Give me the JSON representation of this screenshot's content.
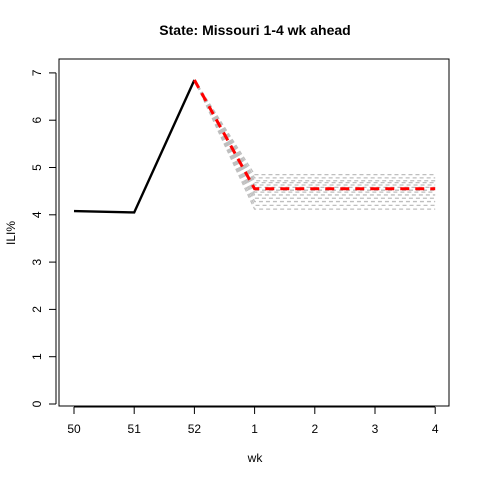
{
  "chart_data": {
    "type": "line",
    "title": "State: Missouri 1-4 wk ahead",
    "xlabel": "wk",
    "ylabel": "ILI%",
    "x_ticks": [
      "50",
      "51",
      "52",
      "1",
      "2",
      "3",
      "4"
    ],
    "ylim": [
      0,
      7
    ],
    "y_ticks": [
      "0",
      "1",
      "2",
      "3",
      "4",
      "5",
      "6",
      "7"
    ],
    "grid": false,
    "series": [
      {
        "role": "observed",
        "color": "#000000",
        "style": "solid",
        "points": [
          [
            "50",
            4.08
          ],
          [
            "51",
            4.05
          ],
          [
            "52",
            6.85
          ]
        ]
      },
      {
        "role": "forecast-median",
        "color": "#ff0000",
        "style": "dashed",
        "points": [
          [
            "52",
            6.85
          ],
          [
            "1",
            4.55
          ],
          [
            "2",
            4.55
          ],
          [
            "3",
            4.55
          ],
          [
            "4",
            4.55
          ]
        ]
      },
      {
        "role": "forecast-ensemble",
        "color": "#bebebe",
        "style": "dashed",
        "start": [
          "52",
          6.85
        ],
        "levels": [
          4.12,
          4.2,
          4.28,
          4.35,
          4.42,
          4.48,
          4.52,
          4.58,
          4.63,
          4.68,
          4.72,
          4.78,
          4.85
        ]
      }
    ]
  }
}
